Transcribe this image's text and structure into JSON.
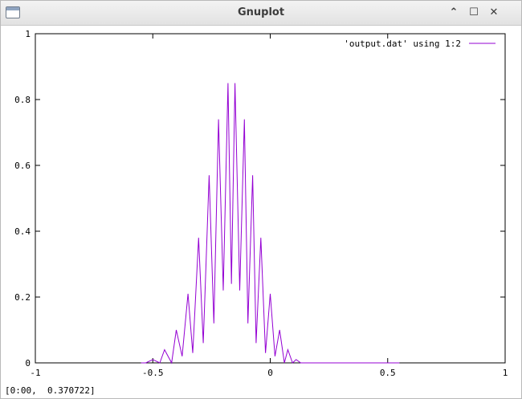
{
  "window": {
    "title": "Gnuplot",
    "buttons": [
      {
        "name": "minimize",
        "glyph": "⌃"
      },
      {
        "name": "maximize",
        "glyph": "☐"
      },
      {
        "name": "close",
        "glyph": "✕"
      }
    ]
  },
  "status": "[0:00,  0.370722]",
  "chart_data": {
    "type": "line",
    "title": "",
    "xlabel": "",
    "ylabel": "",
    "xlim": [
      -1,
      1
    ],
    "ylim": [
      0,
      1
    ],
    "x_ticks": [
      "-1",
      "-0.5",
      "0",
      "0.5",
      "1"
    ],
    "y_ticks": [
      "0",
      "0.2",
      "0.4",
      "0.6",
      "0.8",
      "1"
    ],
    "grid": false,
    "legend_position": "top-right",
    "series": [
      {
        "name": "'output.dat' using 1:2",
        "color": "#9400d3",
        "x": [
          -0.55,
          -0.53,
          -0.5,
          -0.47,
          -0.45,
          -0.42,
          -0.4,
          -0.375,
          -0.35,
          -0.33,
          -0.305,
          -0.285,
          -0.26,
          -0.24,
          -0.22,
          -0.2,
          -0.18,
          -0.165,
          -0.15,
          -0.13,
          -0.11,
          -0.095,
          -0.075,
          -0.06,
          -0.04,
          -0.02,
          0.0,
          0.02,
          0.04,
          0.06,
          0.075,
          0.095,
          0.11,
          0.13,
          0.15,
          0.165,
          0.18,
          0.2,
          0.22,
          0.24,
          0.26,
          0.285,
          0.305,
          0.33,
          0.35,
          0.375,
          0.4,
          0.42,
          0.45,
          0.47,
          0.5,
          0.53,
          0.55
        ],
        "y": [
          0.0,
          0.0,
          0.01,
          0.0,
          0.04,
          0.0,
          0.1,
          0.02,
          0.21,
          0.03,
          0.38,
          0.06,
          0.57,
          0.12,
          0.74,
          0.22,
          0.85,
          0.24,
          0.85,
          0.22,
          0.74,
          0.12,
          0.57,
          0.06,
          0.38,
          0.03,
          0.21,
          0.02,
          0.1,
          0.0,
          0.04,
          0.0,
          0.01,
          0.0,
          0.0,
          0.0,
          0.0,
          0.0,
          0.0,
          0.0,
          0.0,
          0.0,
          0.0,
          0.0,
          0.0,
          0.0,
          0.0,
          0.0,
          0.0,
          0.0,
          0.0,
          0.0,
          0.0
        ]
      }
    ]
  }
}
